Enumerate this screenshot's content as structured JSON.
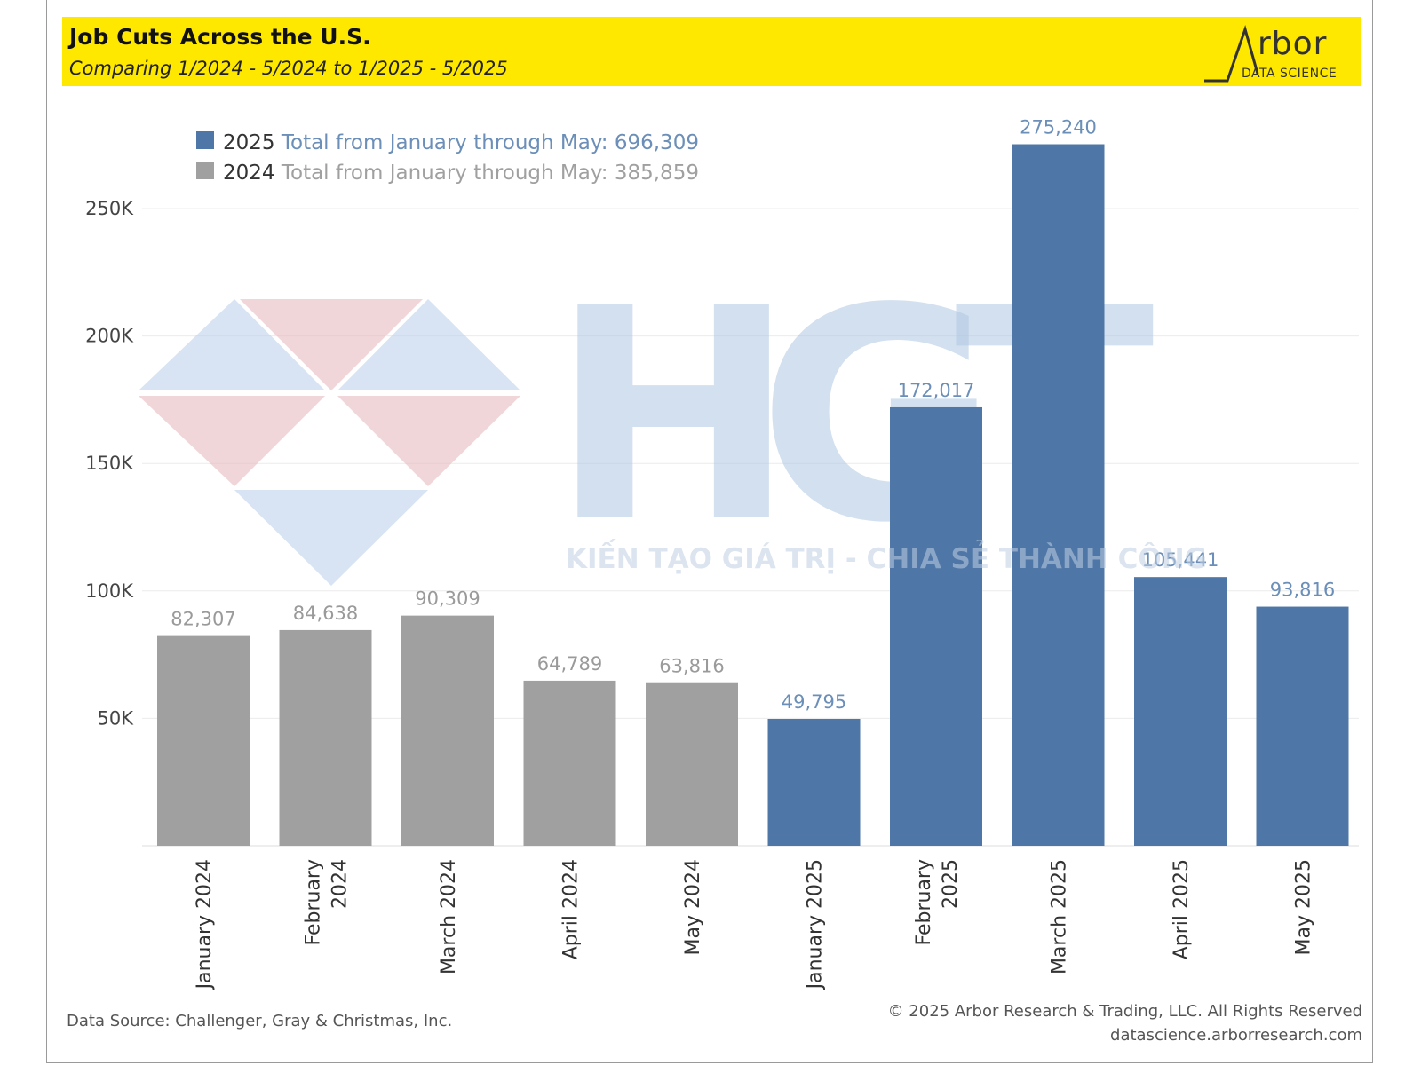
{
  "header": {
    "title": "Job Cuts Across the U.S.",
    "subtitle": "Comparing 1/2024 - 5/2024 to 1/2025 - 5/2025",
    "logo_word": "rbor",
    "logo_sub": "DATA SCIENCE"
  },
  "legend": {
    "items": [
      {
        "year": "2025",
        "text": " Total from January through May: 696,309",
        "color": "#4e76a6"
      },
      {
        "year": "2024",
        "text": " Total from January through May: 385,859",
        "color": "#a0a0a0"
      }
    ]
  },
  "watermark": {
    "letters": "HGT",
    "tagline": "KIẾN TẠO GIÁ TRỊ - CHIA SẺ THÀNH CÔNG"
  },
  "footer": {
    "source": "Data Source: Challenger, Gray & Christmas, Inc.",
    "copyright": "© 2025 Arbor Research & Trading, LLC. All Rights Reserved",
    "website": "datascience.arborresearch.com"
  },
  "chart_data": {
    "type": "bar",
    "title": "Job Cuts Across the U.S.",
    "subtitle": "Comparing 1/2024 - 5/2024 to 1/2025 - 5/2025",
    "xlabel": "",
    "ylabel": "",
    "ylim": [
      0,
      280000
    ],
    "yticks": [
      50000,
      100000,
      150000,
      200000,
      250000
    ],
    "ytick_labels": [
      "50K",
      "100K",
      "150K",
      "200K",
      "250K"
    ],
    "grid": true,
    "legend_position": "top-left",
    "categories": [
      [
        "January 2024"
      ],
      [
        "February",
        "2024"
      ],
      [
        "March 2024"
      ],
      [
        "April 2024"
      ],
      [
        "May 2024"
      ],
      [
        "January 2025"
      ],
      [
        "February",
        "2025"
      ],
      [
        "March 2025"
      ],
      [
        "April 2025"
      ],
      [
        "May 2025"
      ]
    ],
    "values": [
      82307,
      84638,
      90309,
      64789,
      63816,
      49795,
      172017,
      275240,
      105441,
      93816
    ],
    "labels": [
      "82,307",
      "84,638",
      "90,309",
      "64,789",
      "63,816",
      "49,795",
      "172,017",
      "275,240",
      "105,441",
      "93,816"
    ],
    "series_of_bar": [
      "2024",
      "2024",
      "2024",
      "2024",
      "2024",
      "2025",
      "2025",
      "2025",
      "2025",
      "2025"
    ],
    "colors": {
      "2024": "#a0a0a0",
      "2025": "#4e76a6",
      "label_2024": "#9a9a9a",
      "label_2025": "#6b8fb8"
    }
  }
}
